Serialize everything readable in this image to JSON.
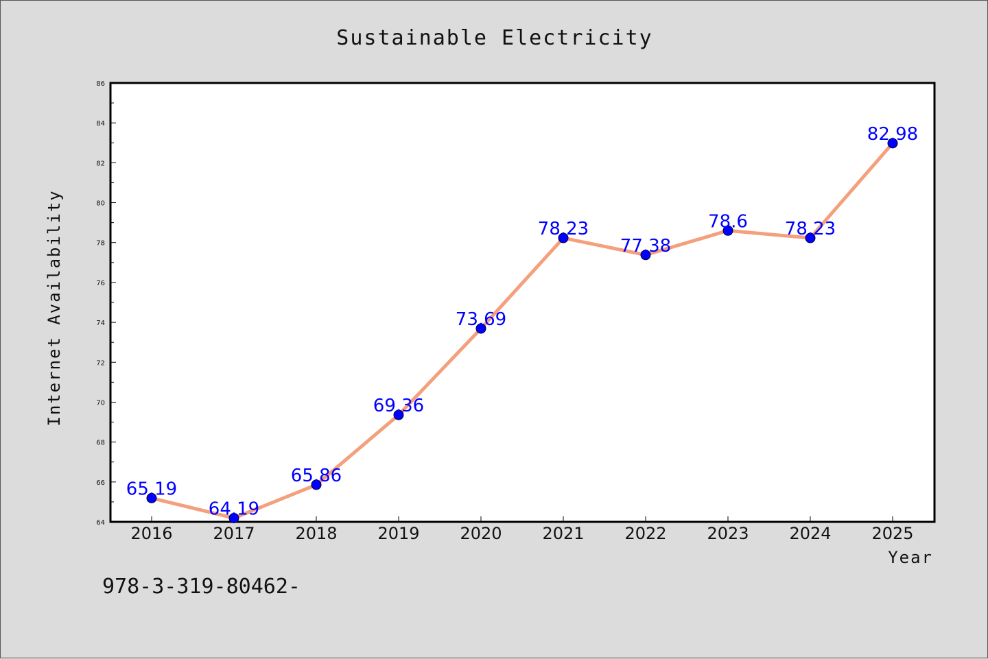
{
  "chart_data": {
    "type": "line",
    "title": "Sustainable Electricity",
    "xlabel": "Year",
    "ylabel": "Internet Availability",
    "categories": [
      "2016",
      "2017",
      "2018",
      "2019",
      "2020",
      "2021",
      "2022",
      "2023",
      "2024",
      "2025"
    ],
    "series": [
      {
        "values": [
          65.19,
          64.19,
          65.86,
          69.36,
          73.69,
          78.23,
          77.38,
          78.6,
          78.23,
          82.98
        ],
        "labels": [
          "65.19",
          "64.19",
          "65.86",
          "69.36",
          "73.69",
          "78.23",
          "77.38",
          "78.6",
          "78.23",
          "82.98"
        ],
        "line_color": "#f4a07c",
        "marker_color": "#0000ff"
      }
    ],
    "ylim": [
      64,
      86
    ],
    "yticks": [
      "64",
      "66",
      "68",
      "70",
      "72",
      "74",
      "76",
      "78",
      "80",
      "82",
      "84",
      "86"
    ],
    "grid": false,
    "legend": "none"
  },
  "footnote": "978-3-319-80462-",
  "colors": {
    "background": "#dcdcdc",
    "plot_background": "#ffffff",
    "line": "#f4a07c",
    "marker": "#0000ff",
    "data_label": "#0000ff"
  }
}
